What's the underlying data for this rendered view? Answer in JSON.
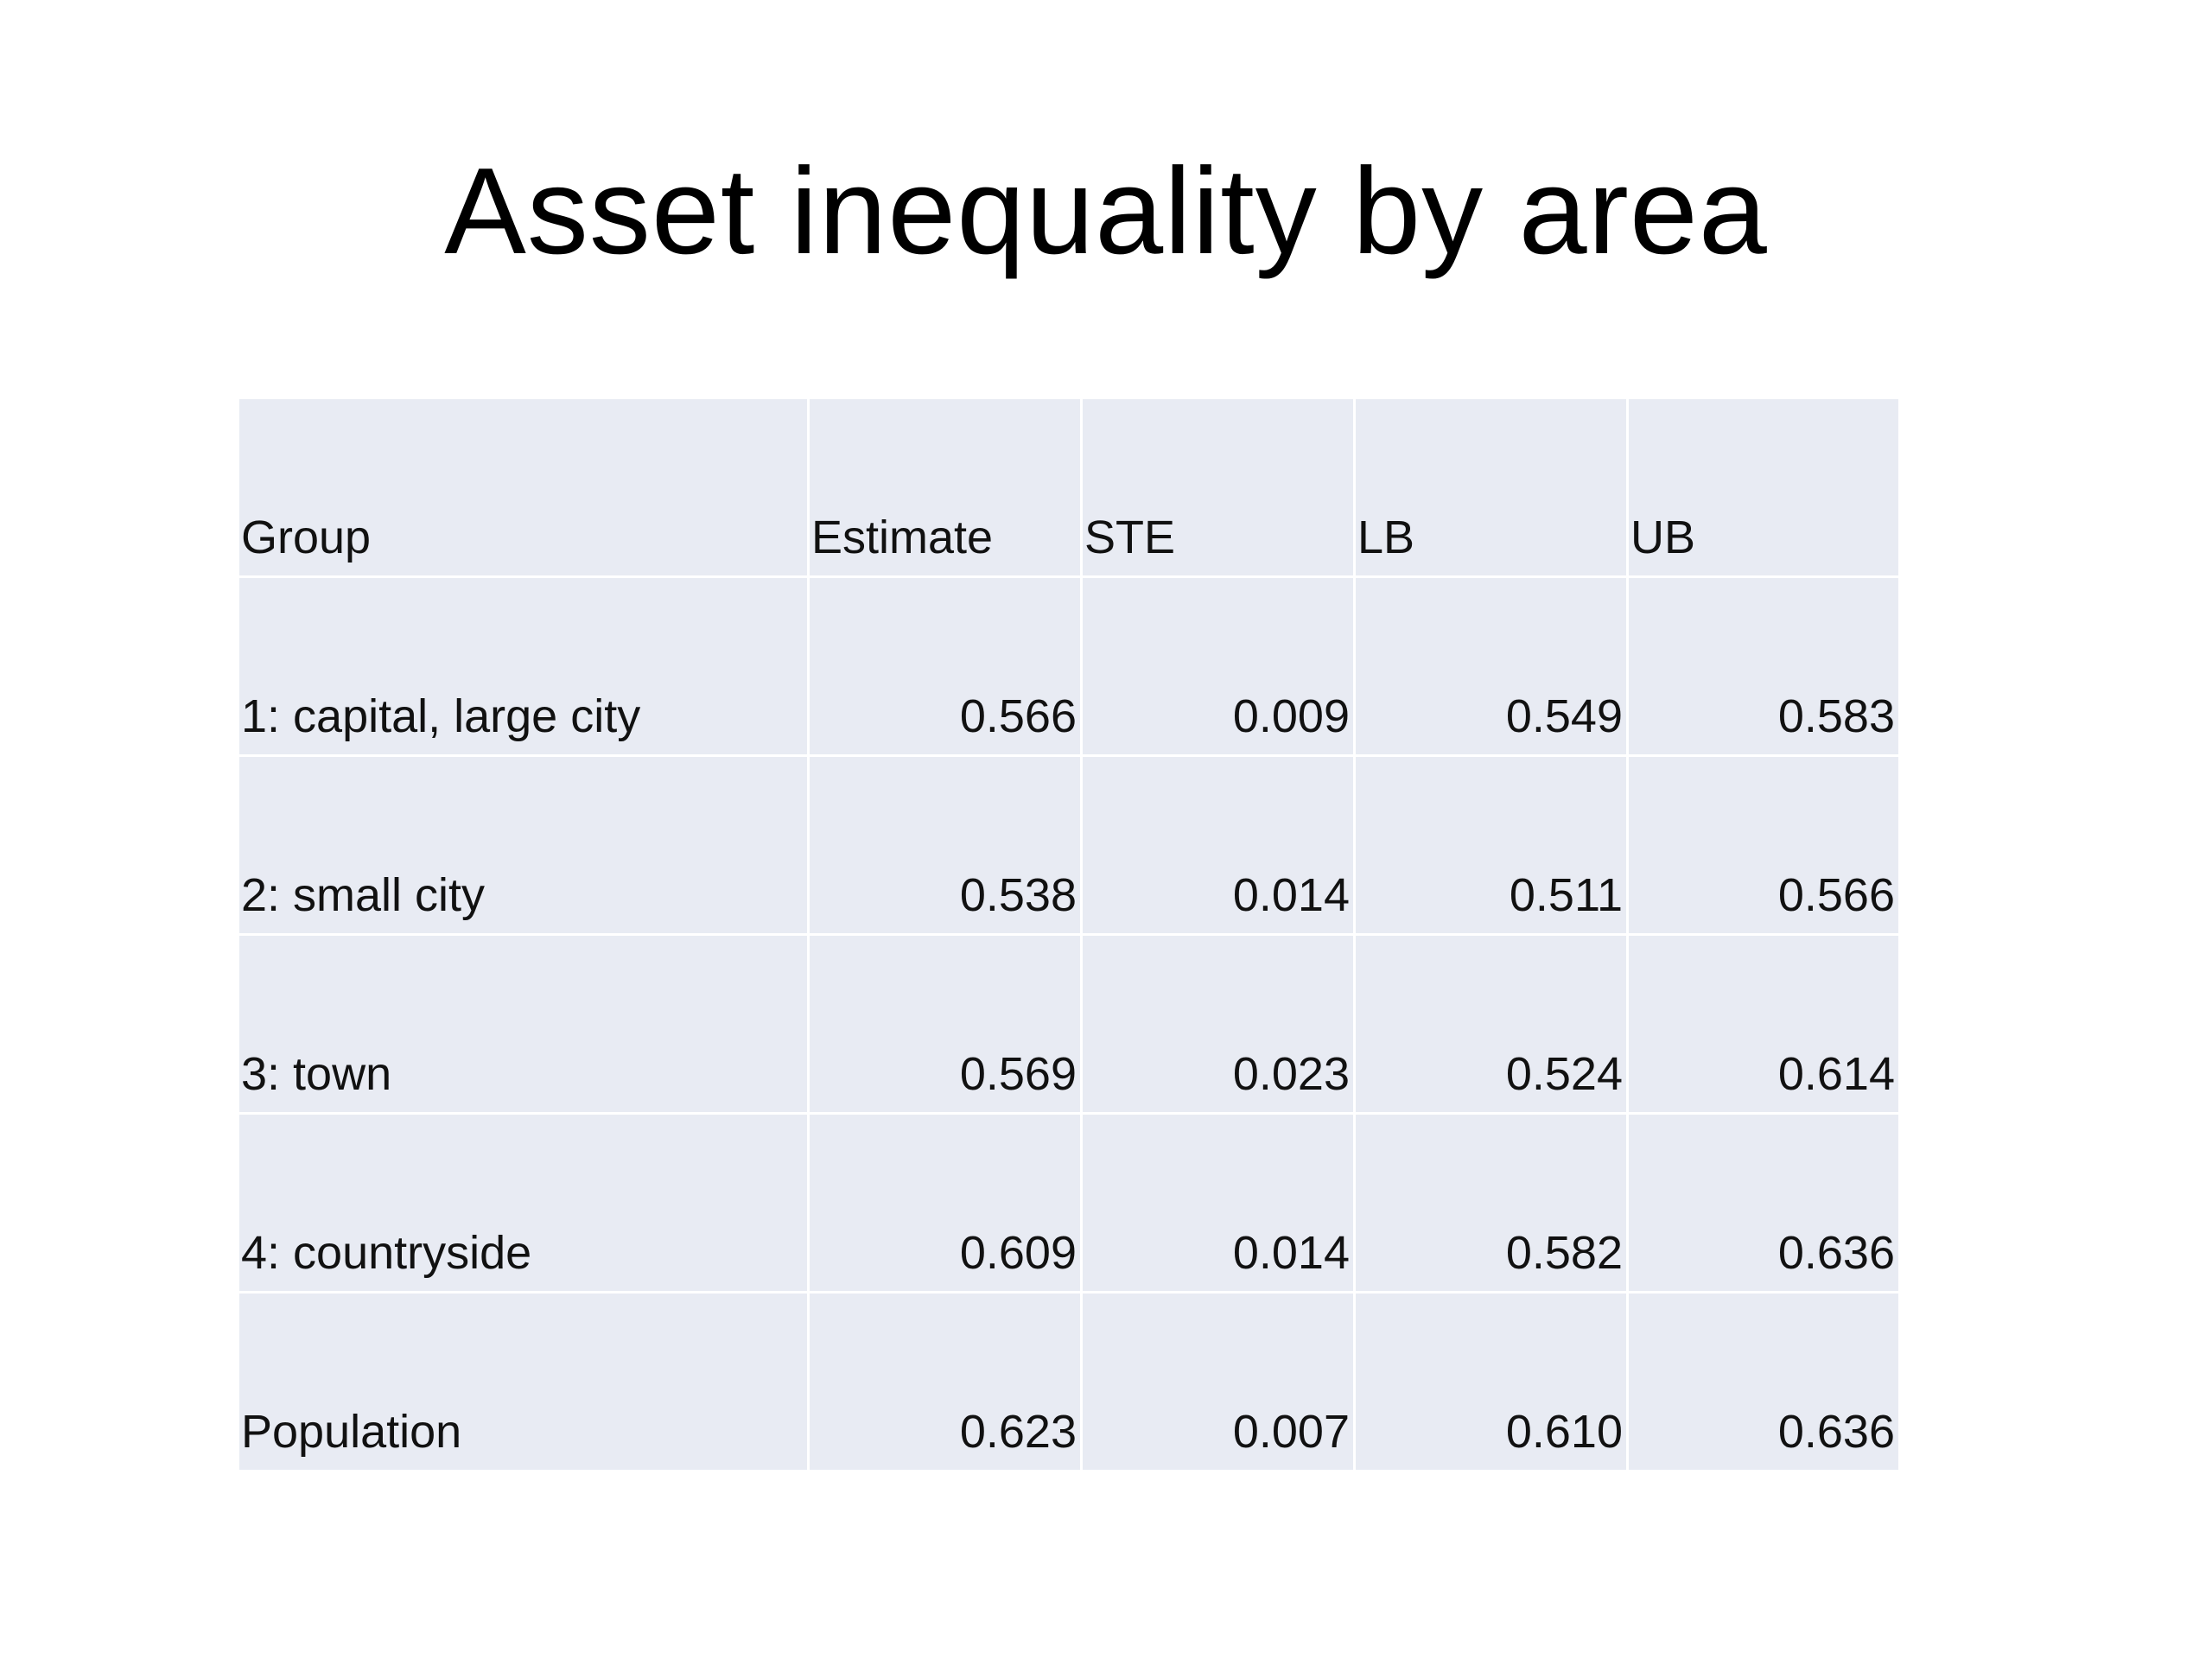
{
  "title": "Asset inequality by area",
  "table": {
    "headers": [
      "Group",
      "Estimate",
      "STE",
      "LB",
      "UB"
    ],
    "rows": [
      [
        "1: capital, large city",
        "0.566",
        "0.009",
        "0.549",
        "0.583"
      ],
      [
        "2: small city",
        "0.538",
        "0.014",
        "0.511",
        "0.566"
      ],
      [
        "3: town",
        "0.569",
        "0.023",
        "0.524",
        "0.614"
      ],
      [
        "4: countryside",
        "0.609",
        "0.014",
        "0.582",
        "0.636"
      ],
      [
        "Population",
        "0.623",
        "0.007",
        "0.610",
        "0.636"
      ]
    ]
  },
  "colors": {
    "cell_background": "#e8ebf3",
    "text": "#111111"
  }
}
